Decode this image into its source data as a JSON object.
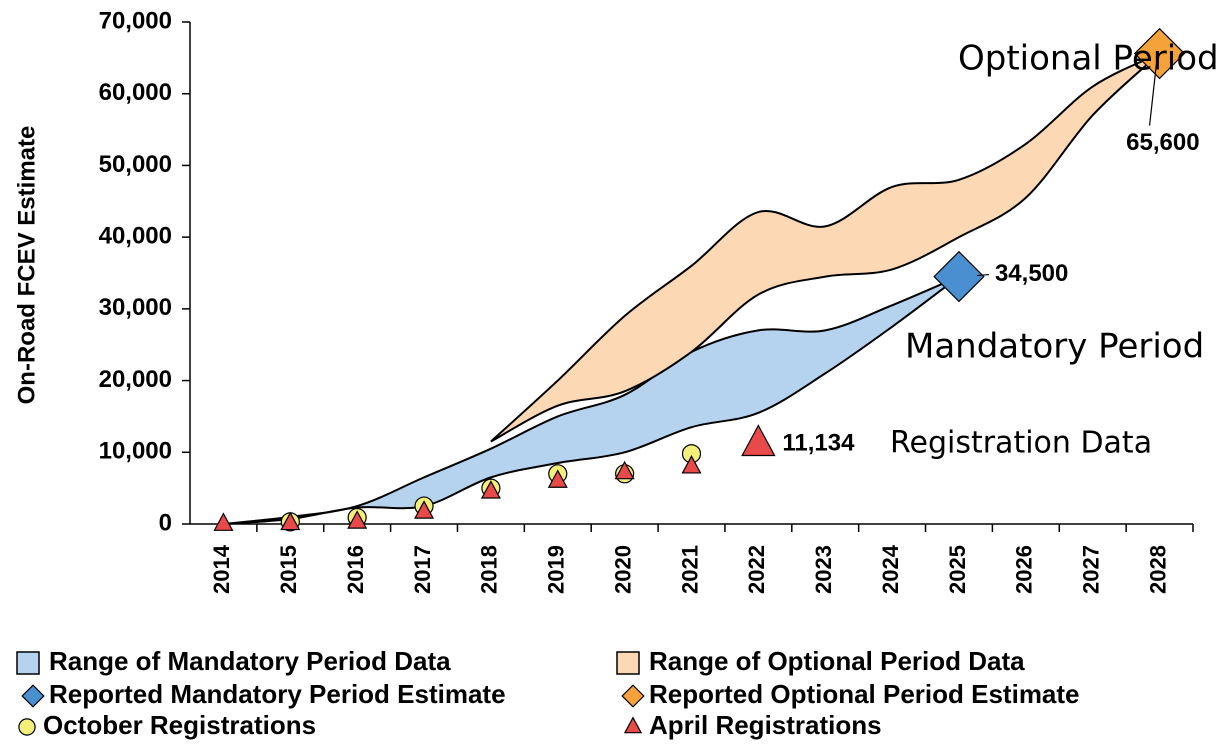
{
  "chart_data": {
    "type": "range",
    "y_label": "On-Road FCEV Estimate",
    "categories": [
      "2014",
      "2015",
      "2016",
      "2017",
      "2018",
      "2019",
      "2020",
      "2021",
      "2022",
      "2023",
      "2024",
      "2025",
      "2026",
      "2027",
      "2028"
    ],
    "ylim": [
      0,
      70000
    ],
    "yticks": [
      0,
      {
        "value": 10000,
        "label": "10,000"
      },
      {
        "value": 20000,
        "label": "20,000"
      },
      {
        "value": 30000,
        "label": "30,000"
      },
      {
        "value": 40000,
        "label": "40,000"
      },
      {
        "value": 50000,
        "label": "50,000"
      },
      {
        "value": 60000,
        "label": "60,000"
      },
      {
        "value": 70000,
        "label": "70,000"
      }
    ],
    "series": [
      {
        "name": "Range of Mandatory Period Data",
        "kind": "range",
        "color": "#b5d3ef",
        "high": [
          0,
          1000,
          2500,
          6500,
          10500,
          15000,
          18000,
          24000,
          27000,
          27000,
          30500,
          34500,
          null,
          null,
          null
        ],
        "low": [
          0,
          700,
          2300,
          2500,
          6500,
          8500,
          10000,
          13500,
          15500,
          21000,
          27500,
          34500,
          null,
          null,
          null
        ]
      },
      {
        "name": "Range of Optional Period Data",
        "kind": "range",
        "color": "#fcd8b5",
        "high": [
          null,
          null,
          null,
          null,
          11500,
          20000,
          29000,
          36000,
          43500,
          41500,
          47000,
          48000,
          53000,
          61000,
          65600
        ],
        "low": [
          null,
          null,
          null,
          null,
          11500,
          16500,
          18500,
          24000,
          32000,
          34500,
          35500,
          40000,
          45500,
          57000,
          65600
        ]
      },
      {
        "name": "Reported Mandatory Period Estimate",
        "kind": "marker",
        "marker": "diamond",
        "color": "#4a90d0",
        "values": [
          null,
          null,
          null,
          null,
          null,
          null,
          null,
          null,
          null,
          null,
          null,
          34500,
          null,
          null,
          null
        ],
        "value_labels": [
          null,
          null,
          null,
          null,
          null,
          null,
          null,
          null,
          null,
          null,
          null,
          "34,500",
          null,
          null,
          null
        ]
      },
      {
        "name": "Reported Optional Period Estimate",
        "kind": "marker",
        "marker": "diamond",
        "color": "#f6a23b",
        "values": [
          null,
          null,
          null,
          null,
          null,
          null,
          null,
          null,
          null,
          null,
          null,
          null,
          null,
          null,
          65600
        ],
        "value_labels": [
          null,
          null,
          null,
          null,
          null,
          null,
          null,
          null,
          null,
          null,
          null,
          null,
          null,
          null,
          "65,600"
        ]
      },
      {
        "name": "October Registrations",
        "kind": "marker",
        "marker": "circle",
        "color": "#f2f07a",
        "values": [
          null,
          300,
          900,
          2500,
          5000,
          7000,
          7000,
          9800,
          null,
          null,
          null,
          null,
          null,
          null,
          null
        ]
      },
      {
        "name": "April Registrations",
        "kind": "marker",
        "marker": "triangle",
        "color": "#e84a4a",
        "values": [
          0,
          100,
          300,
          1700,
          4500,
          6000,
          7200,
          8000,
          11134,
          null,
          null,
          null,
          null,
          null,
          null
        ],
        "value_labels": [
          null,
          null,
          null,
          null,
          null,
          null,
          null,
          null,
          "11,134",
          null,
          null,
          null,
          null,
          null,
          null
        ]
      }
    ],
    "annotations": [
      {
        "text": "Optional Period"
      },
      {
        "text": "Mandatory Period"
      },
      {
        "text": "Registration Data"
      }
    ]
  }
}
